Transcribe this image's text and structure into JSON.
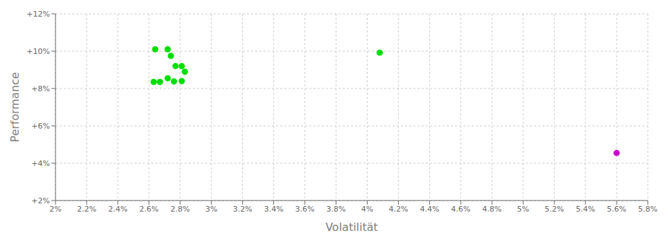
{
  "chart_data": {
    "type": "scatter",
    "xlabel": "Volatilität",
    "ylabel": "Performance",
    "xlim": [
      0.02,
      0.058
    ],
    "ylim": [
      0.02,
      0.12
    ],
    "xticks": [
      {
        "value": 0.02,
        "label": "2%"
      },
      {
        "value": 0.022,
        "label": "2.2%"
      },
      {
        "value": 0.024,
        "label": "2.4%"
      },
      {
        "value": 0.026,
        "label": "2.6%"
      },
      {
        "value": 0.028,
        "label": "2.8%"
      },
      {
        "value": 0.03,
        "label": "3%"
      },
      {
        "value": 0.032,
        "label": "3.2%"
      },
      {
        "value": 0.034,
        "label": "3.4%"
      },
      {
        "value": 0.036,
        "label": "3.6%"
      },
      {
        "value": 0.038,
        "label": "3.8%"
      },
      {
        "value": 0.04,
        "label": "4%"
      },
      {
        "value": 0.042,
        "label": "4.2%"
      },
      {
        "value": 0.044,
        "label": "4.4%"
      },
      {
        "value": 0.046,
        "label": "4.6%"
      },
      {
        "value": 0.048,
        "label": "4.8%"
      },
      {
        "value": 0.05,
        "label": "5%"
      },
      {
        "value": 0.052,
        "label": "5.2%"
      },
      {
        "value": 0.054,
        "label": "5.4%"
      },
      {
        "value": 0.056,
        "label": "5.6%"
      },
      {
        "value": 0.058,
        "label": "5.8%"
      }
    ],
    "yticks": [
      {
        "value": 0.02,
        "label": "+2%"
      },
      {
        "value": 0.04,
        "label": "+4%"
      },
      {
        "value": 0.06,
        "label": "+6%"
      },
      {
        "value": 0.08,
        "label": "+8%"
      },
      {
        "value": 0.1,
        "label": "+10%"
      },
      {
        "value": 0.12,
        "label": "+12%"
      }
    ],
    "grid": true,
    "series": [
      {
        "color": "#00dd00",
        "x": [
          0.0264,
          0.0272,
          0.0274,
          0.0277,
          0.0281,
          0.0283,
          0.0272,
          0.0276,
          0.0263,
          0.0267,
          0.0281,
          0.0408
        ],
        "values": [
          0.101,
          0.101,
          0.0975,
          0.092,
          0.092,
          0.089,
          0.0855,
          0.0838,
          0.0835,
          0.0835,
          0.084,
          0.0992
        ]
      },
      {
        "color": "#cc00cc",
        "x": [
          0.056
        ],
        "values": [
          0.0455
        ]
      }
    ]
  }
}
